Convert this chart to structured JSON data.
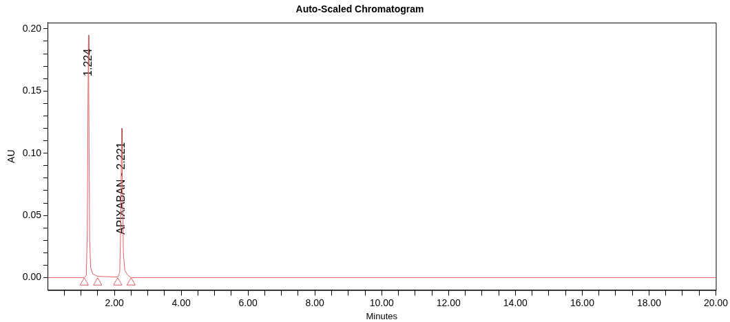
{
  "chart_data": {
    "type": "line",
    "title": "Auto-Scaled Chromatogram",
    "xlabel": "Minutes",
    "ylabel": "AU",
    "xlim": [
      0,
      20
    ],
    "ylim": [
      -0.01,
      0.205
    ],
    "grid": false,
    "legend": false,
    "marker": "none",
    "line_style": "solid",
    "xticks": [
      {
        "value": 0.5,
        "label": null
      },
      {
        "value": 1,
        "label": null
      },
      {
        "value": 1.5,
        "label": null
      },
      {
        "value": 2,
        "label": "2.00"
      },
      {
        "value": 2.5,
        "label": null
      },
      {
        "value": 3,
        "label": null
      },
      {
        "value": 3.5,
        "label": null
      },
      {
        "value": 4,
        "label": "4.00"
      },
      {
        "value": 4.5,
        "label": null
      },
      {
        "value": 5,
        "label": null
      },
      {
        "value": 5.5,
        "label": null
      },
      {
        "value": 6,
        "label": "6.00"
      },
      {
        "value": 6.5,
        "label": null
      },
      {
        "value": 7,
        "label": null
      },
      {
        "value": 7.5,
        "label": null
      },
      {
        "value": 8,
        "label": "8.00"
      },
      {
        "value": 8.5,
        "label": null
      },
      {
        "value": 9,
        "label": null
      },
      {
        "value": 9.5,
        "label": null
      },
      {
        "value": 10,
        "label": "10.00"
      },
      {
        "value": 10.5,
        "label": null
      },
      {
        "value": 11,
        "label": null
      },
      {
        "value": 11.5,
        "label": null
      },
      {
        "value": 12,
        "label": "12.00"
      },
      {
        "value": 12.5,
        "label": null
      },
      {
        "value": 13,
        "label": null
      },
      {
        "value": 13.5,
        "label": null
      },
      {
        "value": 14,
        "label": "14.00"
      },
      {
        "value": 14.5,
        "label": null
      },
      {
        "value": 15,
        "label": null
      },
      {
        "value": 15.5,
        "label": null
      },
      {
        "value": 16,
        "label": "16.00"
      },
      {
        "value": 16.5,
        "label": null
      },
      {
        "value": 17,
        "label": null
      },
      {
        "value": 17.5,
        "label": null
      },
      {
        "value": 18,
        "label": "18.00"
      },
      {
        "value": 18.5,
        "label": null
      },
      {
        "value": 19,
        "label": null
      },
      {
        "value": 19.5,
        "label": null
      },
      {
        "value": 20,
        "label": "20.00"
      }
    ],
    "yticks": [
      {
        "value": 0,
        "label": "0.00"
      },
      {
        "value": 0.01,
        "label": null
      },
      {
        "value": 0.02,
        "label": null
      },
      {
        "value": 0.03,
        "label": null
      },
      {
        "value": 0.04,
        "label": null
      },
      {
        "value": 0.05,
        "label": "0.05"
      },
      {
        "value": 0.06,
        "label": null
      },
      {
        "value": 0.07,
        "label": null
      },
      {
        "value": 0.08,
        "label": null
      },
      {
        "value": 0.09,
        "label": null
      },
      {
        "value": 0.1,
        "label": "0.10"
      },
      {
        "value": 0.11,
        "label": null
      },
      {
        "value": 0.12,
        "label": null
      },
      {
        "value": 0.13,
        "label": null
      },
      {
        "value": 0.14,
        "label": null
      },
      {
        "value": 0.15,
        "label": "0.15"
      },
      {
        "value": 0.16,
        "label": null
      },
      {
        "value": 0.17,
        "label": null
      },
      {
        "value": 0.18,
        "label": null
      },
      {
        "value": 0.19,
        "label": null
      },
      {
        "value": 0.2,
        "label": "0.20"
      }
    ],
    "series": [
      {
        "color": "#e06060",
        "x": [
          0,
          1.1,
          1.16,
          1.19,
          1.21,
          1.224,
          1.24,
          1.26,
          1.29,
          1.35,
          1.5,
          2.1,
          2.16,
          2.19,
          2.21,
          2.221,
          2.24,
          2.27,
          2.31,
          2.4,
          2.5,
          20
        ],
        "values": [
          0,
          0,
          0.002,
          0.04,
          0.14,
          0.195,
          0.12,
          0.03,
          0.008,
          0.003,
          0.001,
          0.0005,
          0.004,
          0.04,
          0.1,
          0.12,
          0.07,
          0.02,
          0.006,
          0.002,
          0,
          0
        ]
      },
      {
        "type": "scatter",
        "marker": "triangle",
        "color": "#e06060",
        "x": [
          1.1,
          1.5,
          2.1,
          2.5
        ],
        "values": [
          -0.004,
          -0.004,
          -0.004,
          -0.004
        ]
      }
    ],
    "annotations": [
      {
        "text": "1.224",
        "x": 1.224,
        "y": 0.195
      },
      {
        "text": "APIXABAN - 2.221",
        "x": 2.221,
        "y": 0.12
      }
    ]
  }
}
